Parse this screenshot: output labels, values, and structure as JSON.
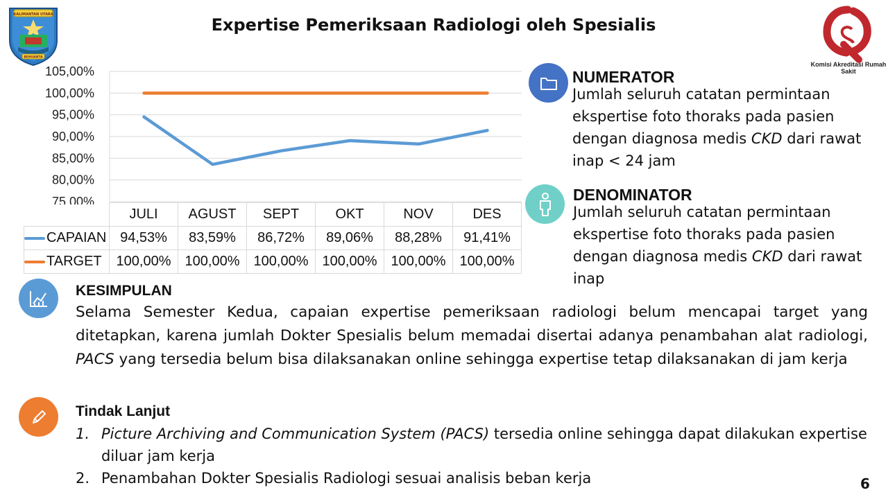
{
  "title": "Expertise Pemeriksaan Radiologi oleh Spesialis",
  "logo_left": {
    "name": "kalimantan-utara-emblem",
    "ribbon_text": "KALIMANTAN UTARA",
    "bottom_text": "BENUANTA"
  },
  "logo_right": {
    "name": "kars-logo",
    "caption": "Komisi Akreditasi Rumah Sakit",
    "color": "#c0282d"
  },
  "chart_data": {
    "type": "line",
    "categories": [
      "JULI",
      "AGUST",
      "SEPT",
      "OKT",
      "NOV",
      "DES"
    ],
    "series": [
      {
        "name": "CAPAIAN",
        "values": [
          94.53,
          83.59,
          86.72,
          89.06,
          88.28,
          91.41
        ],
        "labels": [
          "94,53%",
          "83,59%",
          "86,72%",
          "89,06%",
          "88,28%",
          "91,41%"
        ],
        "color": "#5b9bd5"
      },
      {
        "name": "TARGET",
        "values": [
          100,
          100,
          100,
          100,
          100,
          100
        ],
        "labels": [
          "100,00%",
          "100,00%",
          "100,00%",
          "100,00%",
          "100,00%",
          "100,00%"
        ],
        "color": "#ed7d31"
      }
    ],
    "ylim": [
      75,
      105
    ],
    "yticks": [
      75,
      80,
      85,
      90,
      95,
      100,
      105
    ],
    "ytick_labels": [
      "75,00%",
      "80,00%",
      "85,00%",
      "90,00%",
      "95,00%",
      "100,00%",
      "105,00%"
    ],
    "grid": true,
    "legend": "data table below chart"
  },
  "numerator": {
    "icon": "folder-icon",
    "icon_color": "#4472c4",
    "heading": "NUMERATOR",
    "lines": [
      "Jumlah seluruh catatan permintaan",
      "ekspertise foto thoraks pada pasien",
      "dengan diagnosa medis",
      "CKD",
      "dari rawat",
      "inap < 24 jam"
    ]
  },
  "denominator": {
    "icon": "person-icon",
    "icon_color": "#70d0c8",
    "heading": "DENOMINATOR",
    "lines": [
      "Jumlah seluruh catatan permintaan",
      "ekspertise foto thoraks pada pasien",
      "dengan diagnosa medis",
      "CKD",
      "dari rawat",
      "inap"
    ]
  },
  "kesimpulan": {
    "icon": "chart-icon",
    "icon_color": "#5b9bd5",
    "heading": "KESIMPULAN",
    "text_part1": "Selama Semester Kedua, capaian expertise pemeriksaan radiologi belum mencapai target yang ditetapkan, karena jumlah Dokter Spesialis belum memadai disertai adanya penambahan alat radiologi,",
    "text_italic": "PACS",
    "text_part2": "yang tersedia belum bisa dilaksanakan online sehingga expertise tetap dilaksanakan di jam kerja"
  },
  "tindak_lanjut": {
    "icon": "pencil-icon",
    "icon_color": "#ed7d31",
    "heading": "Tindak Lanjut",
    "items": [
      {
        "num": "1.",
        "italic": "Picture Archiving and Communication System (PACS)",
        "text": "tersedia online sehingga dapat dilakukan expertise diluar jam kerja"
      },
      {
        "num": "2.",
        "italic": "",
        "text": "Penambahan Dokter Spesialis Radiologi sesuai analisis beban kerja"
      }
    ]
  },
  "page_number": "6"
}
